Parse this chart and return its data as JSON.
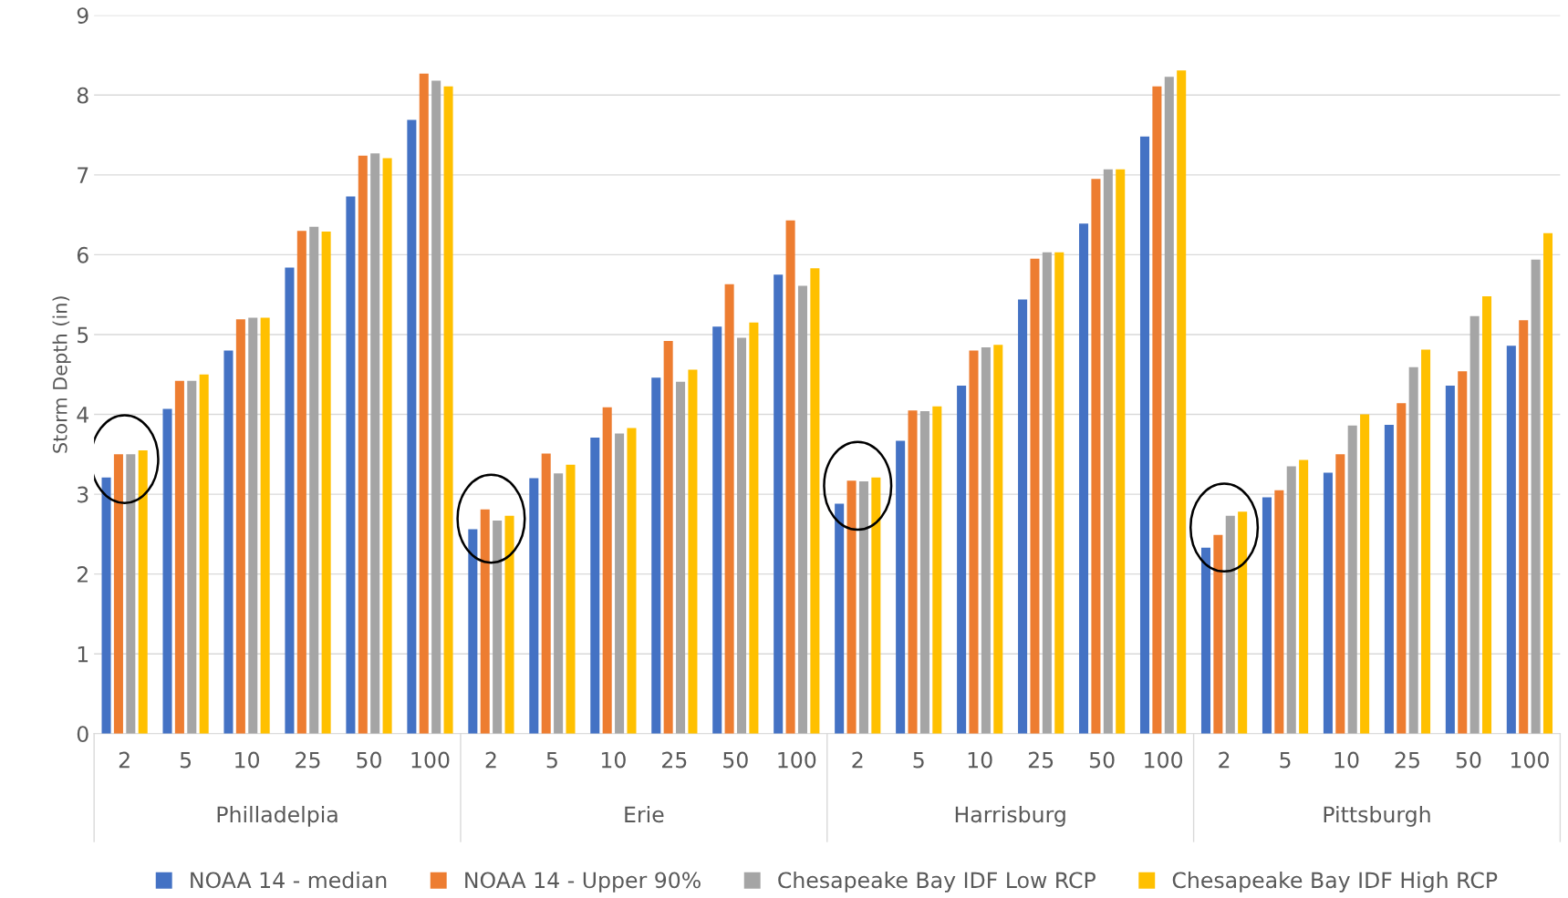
{
  "chart_data": {
    "type": "bar",
    "ylabel": "Storm Depth (in)",
    "categories": [
      "2",
      "5",
      "10",
      "25",
      "50",
      "100",
      "2",
      "5",
      "10",
      "25",
      "50",
      "100",
      "2",
      "5",
      "10",
      "25",
      "50",
      "100",
      "2",
      "5",
      "10",
      "25",
      "50",
      "100"
    ],
    "annotations": [
      "Philladelpia",
      "Erie",
      "Harrisburg",
      "Pittsburgh"
    ],
    "series": [
      {
        "name": "NOAA 14 - median",
        "color": "#4472c4",
        "values": [
          3.21,
          4.07,
          4.8,
          5.84,
          6.73,
          7.69,
          2.56,
          3.2,
          3.71,
          4.46,
          5.1,
          5.75,
          2.88,
          3.67,
          4.36,
          5.44,
          6.39,
          7.48,
          2.33,
          2.96,
          3.27,
          3.87,
          4.36,
          4.86
        ]
      },
      {
        "name": "NOAA 14 - Upper 90%",
        "color": "#ed7d31",
        "values": [
          3.5,
          4.42,
          5.19,
          6.3,
          7.24,
          8.27,
          2.81,
          3.51,
          4.09,
          4.92,
          5.63,
          6.43,
          3.17,
          4.05,
          4.8,
          5.95,
          6.95,
          8.11,
          2.49,
          3.05,
          3.5,
          4.14,
          4.54,
          5.18
        ]
      },
      {
        "name": "Chesapeake Bay IDF Low RCP",
        "color": "#a5a5a5",
        "values": [
          3.5,
          4.42,
          5.21,
          6.35,
          7.27,
          8.18,
          2.67,
          3.26,
          3.76,
          4.41,
          4.96,
          5.61,
          3.16,
          4.04,
          4.84,
          6.03,
          7.07,
          8.23,
          2.73,
          3.35,
          3.86,
          4.59,
          5.23,
          5.94
        ]
      },
      {
        "name": "Chesapeake Bay IDF High RCP",
        "color": "#ffc000",
        "values": [
          3.55,
          4.5,
          5.21,
          6.29,
          7.21,
          8.11,
          2.73,
          3.37,
          3.83,
          4.56,
          5.15,
          5.83,
          3.21,
          4.1,
          4.87,
          6.03,
          7.07,
          8.31,
          2.78,
          3.43,
          4.0,
          4.81,
          5.48,
          6.27
        ]
      }
    ],
    "ylim": [
      0,
      9
    ],
    "yticks": [
      0,
      1,
      2,
      3,
      4,
      5,
      6,
      7,
      8,
      9
    ],
    "grid": "y",
    "legend": "bottom"
  }
}
